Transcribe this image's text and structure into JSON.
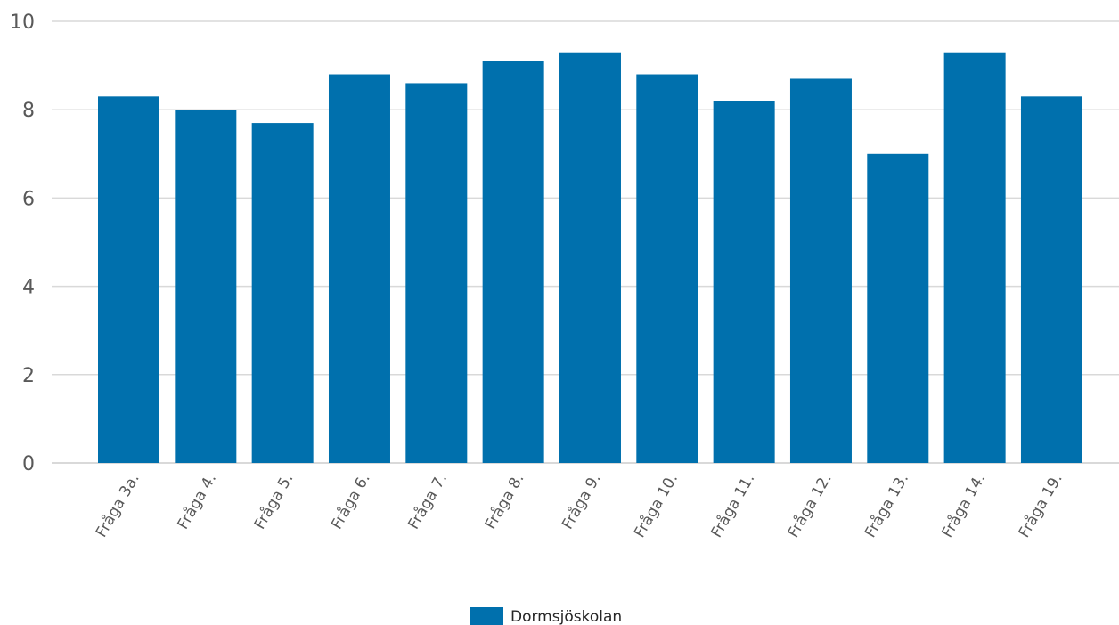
{
  "chart_data": {
    "type": "bar",
    "categories": [
      "Fråga 3a.",
      "Fråga 4.",
      "Fråga 5.",
      "Fråga 6.",
      "Fråga 7.",
      "Fråga 8.",
      "Fråga 9.",
      "Fråga 10.",
      "Fråga 11.",
      "Fråga 12.",
      "Fråga 13.",
      "Fråga 14.",
      "Fråga 19."
    ],
    "series": [
      {
        "name": "Dormsjöskolan",
        "color": "#0070AD",
        "values": [
          8.3,
          8.0,
          7.7,
          8.8,
          8.6,
          9.1,
          9.3,
          8.8,
          8.2,
          8.7,
          7.0,
          9.3,
          8.3
        ]
      }
    ],
    "y_ticks": [
      "0",
      "2",
      "4",
      "6",
      "8",
      "10"
    ],
    "ylim": [
      0,
      10
    ],
    "grid": true,
    "legend_position": "bottom-center",
    "colors": {
      "grid": "#D9D9D9",
      "axis_text": "#595959",
      "legend_text": "#262626"
    }
  }
}
